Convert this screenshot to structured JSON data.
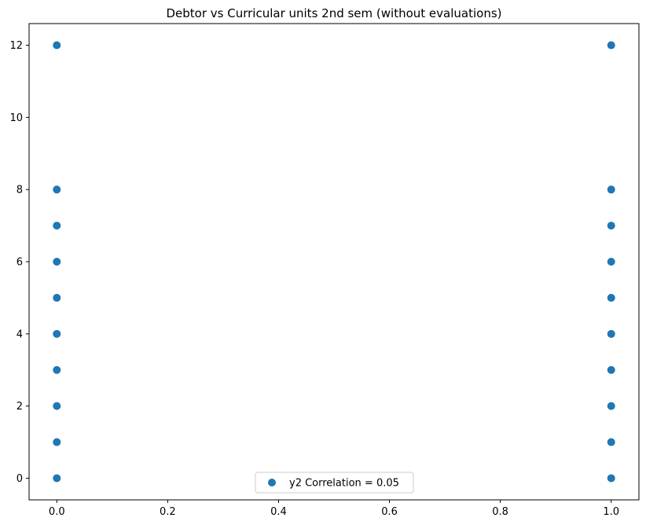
{
  "chart_data": {
    "type": "scatter",
    "title": "Debtor vs Curricular units 2nd sem (without evaluations)",
    "xlabel": "",
    "ylabel": "",
    "xlim": [
      -0.05,
      1.05
    ],
    "ylim": [
      -0.6,
      12.6
    ],
    "xticks": [
      0.0,
      0.2,
      0.4,
      0.6,
      0.8,
      1.0
    ],
    "xtick_labels": [
      "0.0",
      "0.2",
      "0.4",
      "0.6",
      "0.8",
      "1.0"
    ],
    "yticks": [
      0,
      2,
      4,
      6,
      8,
      10,
      12
    ],
    "ytick_labels": [
      "0",
      "2",
      "4",
      "6",
      "8",
      "10",
      "12"
    ],
    "grid": false,
    "legend_position": "bottom-center",
    "series": [
      {
        "name": "y2 Correlation = 0.05",
        "color": "#1f77b4",
        "points": [
          {
            "x": 0,
            "y": 0
          },
          {
            "x": 0,
            "y": 1
          },
          {
            "x": 0,
            "y": 2
          },
          {
            "x": 0,
            "y": 3
          },
          {
            "x": 0,
            "y": 4
          },
          {
            "x": 0,
            "y": 5
          },
          {
            "x": 0,
            "y": 6
          },
          {
            "x": 0,
            "y": 7
          },
          {
            "x": 0,
            "y": 8
          },
          {
            "x": 0,
            "y": 12
          },
          {
            "x": 1,
            "y": 0
          },
          {
            "x": 1,
            "y": 1
          },
          {
            "x": 1,
            "y": 2
          },
          {
            "x": 1,
            "y": 3
          },
          {
            "x": 1,
            "y": 4
          },
          {
            "x": 1,
            "y": 5
          },
          {
            "x": 1,
            "y": 6
          },
          {
            "x": 1,
            "y": 7
          },
          {
            "x": 1,
            "y": 8
          },
          {
            "x": 1,
            "y": 12
          }
        ]
      }
    ]
  }
}
